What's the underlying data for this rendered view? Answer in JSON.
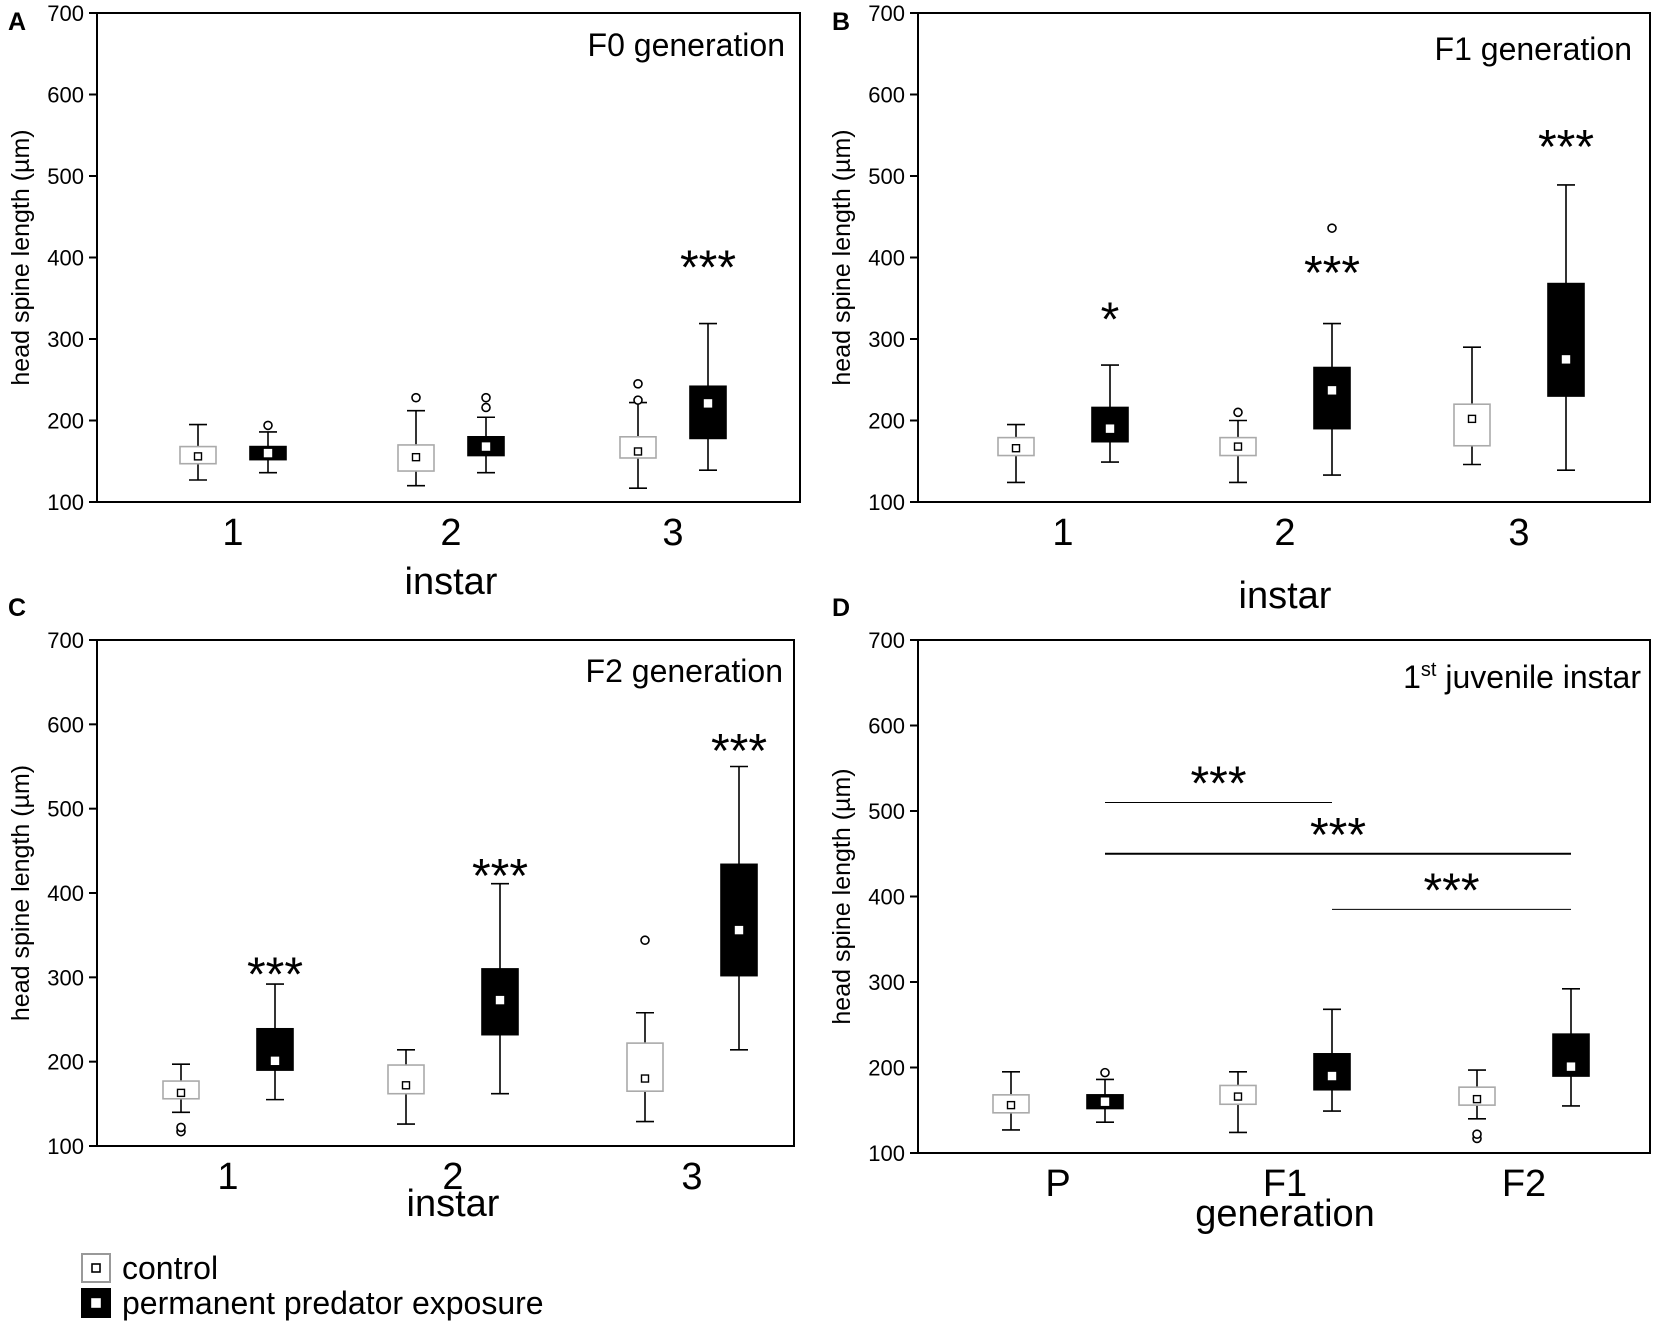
{
  "legend": [
    {
      "label": "control",
      "fill": "#ffffff",
      "stroke": "#999999",
      "center": "#ffffff"
    },
    {
      "label": "permanent predator exposure",
      "fill": "#000000",
      "stroke": "#000000",
      "center": "#ffffff"
    }
  ],
  "colors": {
    "control_edge": "#aaaaaa",
    "exposure": "#000000",
    "axis": "#000000"
  },
  "chart_data": [
    {
      "panel": "A",
      "type": "box",
      "title": "F0 generation",
      "xlabel": "instar",
      "ylabel": "head spine length (µm)",
      "ylim": [
        100,
        700
      ],
      "yticks": [
        100,
        200,
        300,
        400,
        500,
        600,
        700
      ],
      "categories": [
        "1",
        "2",
        "3"
      ],
      "series": [
        {
          "name": "control",
          "boxes": [
            {
              "min": 127,
              "q1": 147,
              "median": 156,
              "q3": 168,
              "max": 195,
              "outliers": []
            },
            {
              "min": 120,
              "q1": 138,
              "median": 155,
              "q3": 170,
              "max": 212,
              "outliers": [
                228
              ]
            },
            {
              "min": 117,
              "q1": 154,
              "median": 162,
              "q3": 180,
              "max": 222,
              "outliers": [
                225,
                245
              ]
            }
          ]
        },
        {
          "name": "permanent predator exposure",
          "boxes": [
            {
              "min": 136,
              "q1": 152,
              "median": 160,
              "q3": 168,
              "max": 186,
              "outliers": [
                194
              ]
            },
            {
              "min": 136,
              "q1": 157,
              "median": 168,
              "q3": 180,
              "max": 204,
              "outliers": [
                216,
                228
              ]
            },
            {
              "min": 139,
              "q1": 178,
              "median": 221,
              "q3": 242,
              "max": 319,
              "outliers": []
            }
          ]
        }
      ],
      "annotations": [
        {
          "category": 2,
          "text": "***",
          "y": 400
        }
      ]
    },
    {
      "panel": "B",
      "type": "box",
      "title": "F1 generation",
      "xlabel": "instar",
      "ylabel": "head spine length (µm)",
      "ylim": [
        100,
        700
      ],
      "yticks": [
        100,
        200,
        300,
        400,
        500,
        600,
        700
      ],
      "categories": [
        "1",
        "2",
        "3"
      ],
      "series": [
        {
          "name": "control",
          "boxes": [
            {
              "min": 124,
              "q1": 157,
              "median": 166,
              "q3": 179,
              "max": 195,
              "outliers": []
            },
            {
              "min": 124,
              "q1": 157,
              "median": 168,
              "q3": 179,
              "max": 200,
              "outliers": [
                210
              ]
            },
            {
              "min": 146,
              "q1": 169,
              "median": 202,
              "q3": 220,
              "max": 290,
              "outliers": []
            }
          ]
        },
        {
          "name": "permanent predator exposure",
          "boxes": [
            {
              "min": 149,
              "q1": 174,
              "median": 190,
              "q3": 216,
              "max": 268,
              "outliers": []
            },
            {
              "min": 133,
              "q1": 190,
              "median": 237,
              "q3": 265,
              "max": 319,
              "outliers": [
                436
              ]
            },
            {
              "min": 139,
              "q1": 230,
              "median": 275,
              "q3": 368,
              "max": 489,
              "outliers": []
            }
          ]
        }
      ],
      "annotations": [
        {
          "category": 0,
          "text": "*",
          "y": 336
        },
        {
          "category": 1,
          "text": "***",
          "y": 393
        },
        {
          "category": 2,
          "text": "***",
          "y": 548
        }
      ]
    },
    {
      "panel": "C",
      "type": "box",
      "title": "F2 generation",
      "xlabel": "instar",
      "ylabel": "head spine length (µm)",
      "ylim": [
        100,
        700
      ],
      "yticks": [
        100,
        200,
        300,
        400,
        500,
        600,
        700
      ],
      "categories": [
        "1",
        "2",
        "3"
      ],
      "series": [
        {
          "name": "control",
          "boxes": [
            {
              "min": 140,
              "q1": 156,
              "median": 163,
              "q3": 177,
              "max": 197,
              "outliers": [
                117,
                122
              ]
            },
            {
              "min": 126,
              "q1": 162,
              "median": 172,
              "q3": 196,
              "max": 214,
              "outliers": []
            },
            {
              "min": 129,
              "q1": 165,
              "median": 180,
              "q3": 222,
              "max": 258,
              "outliers": [
                344
              ]
            }
          ]
        },
        {
          "name": "permanent predator exposure",
          "boxes": [
            {
              "min": 155,
              "q1": 190,
              "median": 201,
              "q3": 239,
              "max": 292,
              "outliers": []
            },
            {
              "min": 162,
              "q1": 232,
              "median": 273,
              "q3": 310,
              "max": 411,
              "outliers": []
            },
            {
              "min": 214,
              "q1": 302,
              "median": 356,
              "q3": 434,
              "max": 550,
              "outliers": []
            }
          ]
        }
      ],
      "annotations": [
        {
          "category": 0,
          "text": "***",
          "y": 315
        },
        {
          "category": 1,
          "text": "***",
          "y": 432
        },
        {
          "category": 2,
          "text": "***",
          "y": 580
        }
      ]
    },
    {
      "panel": "D",
      "type": "box",
      "title_main": "1",
      "title_sup": "st",
      "title_rest": " juvenile instar",
      "xlabel": "generation",
      "ylabel": "head spine length (µm)",
      "ylim": [
        100,
        700
      ],
      "yticks": [
        100,
        200,
        300,
        400,
        500,
        600,
        700
      ],
      "categories": [
        "P",
        "F1",
        "F2"
      ],
      "series": [
        {
          "name": "control",
          "boxes": [
            {
              "min": 127,
              "q1": 147,
              "median": 156,
              "q3": 168,
              "max": 195,
              "outliers": []
            },
            {
              "min": 124,
              "q1": 157,
              "median": 166,
              "q3": 179,
              "max": 195,
              "outliers": []
            },
            {
              "min": 140,
              "q1": 156,
              "median": 163,
              "q3": 177,
              "max": 197,
              "outliers": [
                117,
                122
              ]
            }
          ]
        },
        {
          "name": "permanent predator exposure",
          "boxes": [
            {
              "min": 136,
              "q1": 152,
              "median": 160,
              "q3": 168,
              "max": 186,
              "outliers": [
                194
              ]
            },
            {
              "min": 149,
              "q1": 174,
              "median": 190,
              "q3": 216,
              "max": 268,
              "outliers": []
            },
            {
              "min": 155,
              "q1": 190,
              "median": 201,
              "q3": 239,
              "max": 292,
              "outliers": []
            }
          ]
        }
      ],
      "brackets": [
        {
          "from": 0,
          "to": 1,
          "y": 510,
          "text": "***",
          "weight": "thin"
        },
        {
          "from": 0,
          "to": 2,
          "y": 450,
          "text": "***",
          "weight": "thick"
        },
        {
          "from": 1,
          "to": 2,
          "y": 385,
          "text": "***",
          "weight": "thin"
        }
      ]
    }
  ]
}
